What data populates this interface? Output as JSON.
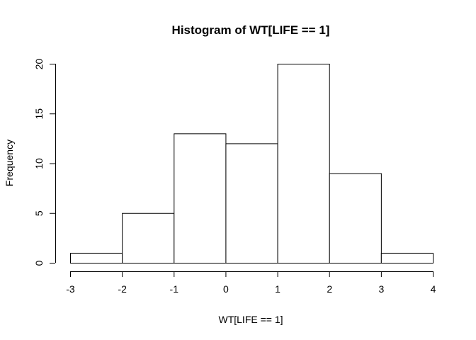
{
  "chart_data": {
    "type": "bar",
    "title": "Histogram of WT[LIFE == 1]",
    "xlabel": "WT[LIFE == 1]",
    "ylabel": "Frequency",
    "bins": [
      {
        "start": -3,
        "end": -2,
        "count": 1
      },
      {
        "start": -2,
        "end": -1,
        "count": 5
      },
      {
        "start": -1,
        "end": 0,
        "count": 13
      },
      {
        "start": 0,
        "end": 1,
        "count": 12
      },
      {
        "start": 1,
        "end": 2,
        "count": 20
      },
      {
        "start": 2,
        "end": 3,
        "count": 9
      },
      {
        "start": 3,
        "end": 4,
        "count": 1
      }
    ],
    "xlim": [
      -3,
      4
    ],
    "ylim": [
      0,
      20
    ],
    "x_ticks": [
      "-3",
      "-2",
      "-1",
      "0",
      "1",
      "2",
      "3",
      "4"
    ],
    "y_ticks": [
      "0",
      "5",
      "10",
      "15",
      "20"
    ],
    "grid": false,
    "bar_fill": "#ffffff",
    "bar_stroke": "#000000"
  }
}
